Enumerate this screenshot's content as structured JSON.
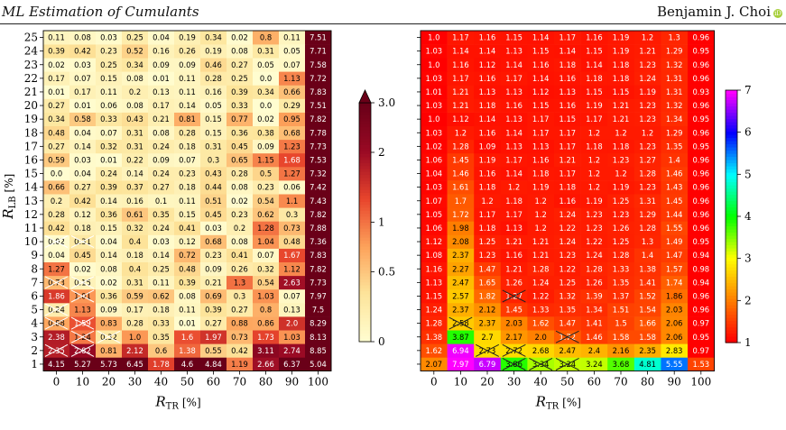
{
  "header": {
    "left_title": "ML Estimation of Cumulants",
    "right_author": "Benjamin J. Choi",
    "orcid_badge": "iD"
  },
  "chart_data": [
    {
      "type": "heatmap",
      "x_label_main": "R",
      "x_label_sub": "TR",
      "x_label_unit": "[%]",
      "y_label_main": "R",
      "y_label_sub": "LB",
      "y_label_unit": "[%]",
      "x_ticks": [
        "0",
        "10",
        "20",
        "30",
        "40",
        "50",
        "60",
        "70",
        "80",
        "90",
        "100"
      ],
      "y_ticks": [
        "1",
        "2",
        "3",
        "4",
        "5",
        "6",
        "7",
        "8",
        "9",
        "10",
        "11",
        "12",
        "13",
        "14",
        "15",
        "16",
        "17",
        "18",
        "19",
        "20",
        "21",
        "22",
        "23",
        "24",
        "25"
      ],
      "colorbar": {
        "scale": "log",
        "range": [
          0,
          3.0
        ],
        "ticks": [
          "0",
          "0.5",
          "1",
          "2",
          "3.0"
        ],
        "extend_max": true,
        "colors": [
          "#fffdd0",
          "#fde49a",
          "#fda15a",
          "#e8452c",
          "#9a0a24",
          "#6a0018"
        ]
      },
      "values": [
        [
          "4.15",
          "5.27",
          "5.73",
          "6.45",
          "1.78",
          "4.6",
          "4.84",
          "1.19",
          "2.66",
          "6.37",
          "5.04"
        ],
        [
          "2.35",
          "2.82",
          "0.81",
          "2.12",
          "0.6",
          "1.38",
          "0.55",
          "0.42",
          "3.11",
          "2.74",
          "8.85"
        ],
        [
          "2.38",
          "1.24",
          "0.32",
          "1.0",
          "0.35",
          "1.6",
          "1.97",
          "0.73",
          "1.73",
          "1.03",
          "8.13"
        ],
        [
          "0.88",
          "1.59",
          "0.83",
          "0.28",
          "0.33",
          "0.01",
          "0.27",
          "0.88",
          "0.86",
          "2.0",
          "8.29"
        ],
        [
          "0.24",
          "1.13",
          "0.09",
          "0.17",
          "0.18",
          "0.11",
          "0.39",
          "0.27",
          "0.8",
          "0.13",
          "7.5"
        ],
        [
          "1.86",
          "1.01",
          "0.36",
          "0.59",
          "0.62",
          "0.08",
          "0.69",
          "0.3",
          "1.03",
          "0.07",
          "7.97"
        ],
        [
          "0.73",
          "0.15",
          "0.02",
          "0.31",
          "0.11",
          "0.39",
          "0.21",
          "1.3",
          "0.54",
          "2.63",
          "7.73"
        ],
        [
          "1.27",
          "0.02",
          "0.08",
          "0.4",
          "0.25",
          "0.48",
          "0.09",
          "0.26",
          "0.32",
          "1.12",
          "7.82"
        ],
        [
          "0.04",
          "0.45",
          "0.14",
          "0.18",
          "0.14",
          "0.72",
          "0.23",
          "0.41",
          "0.07",
          "1.67",
          "7.83"
        ],
        [
          "0.02",
          "0.31",
          "0.04",
          "0.4",
          "0.03",
          "0.12",
          "0.68",
          "0.08",
          "1.04",
          "0.48",
          "7.36"
        ],
        [
          "0.42",
          "0.18",
          "0.15",
          "0.32",
          "0.24",
          "0.41",
          "0.03",
          "0.2",
          "1.28",
          "0.73",
          "7.88"
        ],
        [
          "0.28",
          "0.12",
          "0.36",
          "0.61",
          "0.35",
          "0.15",
          "0.45",
          "0.23",
          "0.62",
          "0.3",
          "7.82"
        ],
        [
          "0.2",
          "0.42",
          "0.14",
          "0.16",
          "0.1",
          "0.11",
          "0.51",
          "0.02",
          "0.54",
          "1.1",
          "7.43"
        ],
        [
          "0.66",
          "0.27",
          "0.39",
          "0.37",
          "0.27",
          "0.18",
          "0.44",
          "0.08",
          "0.23",
          "0.06",
          "7.42"
        ],
        [
          "0.0",
          "0.04",
          "0.24",
          "0.14",
          "0.24",
          "0.23",
          "0.43",
          "0.28",
          "0.5",
          "1.27",
          "7.32"
        ],
        [
          "0.59",
          "0.03",
          "0.01",
          "0.22",
          "0.09",
          "0.07",
          "0.3",
          "0.65",
          "1.15",
          "1.68",
          "7.53"
        ],
        [
          "0.27",
          "0.14",
          "0.32",
          "0.31",
          "0.24",
          "0.18",
          "0.31",
          "0.45",
          "0.09",
          "1.23",
          "7.73"
        ],
        [
          "0.48",
          "0.04",
          "0.07",
          "0.31",
          "0.08",
          "0.28",
          "0.15",
          "0.36",
          "0.38",
          "0.68",
          "7.78"
        ],
        [
          "0.34",
          "0.58",
          "0.33",
          "0.43",
          "0.21",
          "0.81",
          "0.15",
          "0.77",
          "0.02",
          "0.95",
          "7.82"
        ],
        [
          "0.27",
          "0.01",
          "0.06",
          "0.08",
          "0.17",
          "0.14",
          "0.05",
          "0.33",
          "0.0",
          "0.29",
          "7.51"
        ],
        [
          "0.01",
          "0.17",
          "0.11",
          "0.2",
          "0.13",
          "0.11",
          "0.16",
          "0.39",
          "0.34",
          "0.66",
          "7.83"
        ],
        [
          "0.17",
          "0.07",
          "0.15",
          "0.08",
          "0.01",
          "0.11",
          "0.28",
          "0.25",
          "0.0",
          "1.13",
          "7.72"
        ],
        [
          "0.02",
          "0.03",
          "0.25",
          "0.34",
          "0.09",
          "0.09",
          "0.46",
          "0.27",
          "0.05",
          "0.07",
          "7.58"
        ],
        [
          "0.39",
          "0.42",
          "0.23",
          "0.52",
          "0.16",
          "0.26",
          "0.19",
          "0.08",
          "0.31",
          "0.05",
          "7.71"
        ],
        [
          "0.11",
          "0.08",
          "0.03",
          "0.25",
          "0.04",
          "0.19",
          "0.34",
          "0.02",
          "0.8",
          "0.11",
          "7.51"
        ]
      ],
      "crossed_cells": [
        [
          1,
          0
        ],
        [
          1,
          1
        ],
        [
          2,
          1
        ],
        [
          2,
          2
        ],
        [
          3,
          0
        ],
        [
          3,
          1
        ],
        [
          4,
          0
        ],
        [
          5,
          1
        ],
        [
          6,
          0
        ],
        [
          6,
          1
        ],
        [
          9,
          0
        ],
        [
          9,
          1
        ]
      ]
    },
    {
      "type": "heatmap",
      "x_label_main": "R",
      "x_label_sub": "TR",
      "x_label_unit": "[%]",
      "x_ticks": [
        "0",
        "10",
        "20",
        "30",
        "40",
        "50",
        "60",
        "70",
        "80",
        "90",
        "100"
      ],
      "y_ticks": [
        "1",
        "2",
        "3",
        "4",
        "5",
        "6",
        "7",
        "8",
        "9",
        "10",
        "11",
        "12",
        "13",
        "14",
        "15",
        "16",
        "17",
        "18",
        "19",
        "20",
        "21",
        "22",
        "23",
        "24",
        "25"
      ],
      "colorbar": {
        "scale": "linear",
        "range": [
          1,
          7
        ],
        "ticks": [
          "1",
          "2",
          "3",
          "4",
          "5",
          "6",
          "7"
        ],
        "colors": [
          "#ff0000",
          "#ff8000",
          "#ffff00",
          "#00ff00",
          "#00ffff",
          "#0000ff",
          "#ff00ff"
        ]
      },
      "values": [
        [
          "2.07",
          "7.97",
          "6.79",
          "3.86",
          "3.34",
          "3.24",
          "3.24",
          "3.68",
          "4.81",
          "5.55",
          "1.53"
        ],
        [
          "1.62",
          "6.94",
          "2.73",
          "2.72",
          "2.68",
          "2.47",
          "2.4",
          "2.16",
          "2.35",
          "2.83",
          "0.97"
        ],
        [
          "1.38",
          "3.87",
          "2.7",
          "2.17",
          "2.0",
          "1.72",
          "1.46",
          "1.58",
          "1.58",
          "2.06",
          "0.95"
        ],
        [
          "1.28",
          "2.58",
          "2.37",
          "2.03",
          "1.62",
          "1.47",
          "1.41",
          "1.5",
          "1.66",
          "2.06",
          "0.97"
        ],
        [
          "1.24",
          "2.37",
          "2.12",
          "1.45",
          "1.33",
          "1.35",
          "1.34",
          "1.51",
          "1.54",
          "2.03",
          "0.96"
        ],
        [
          "1.15",
          "2.57",
          "1.82",
          "1.27",
          "1.22",
          "1.32",
          "1.39",
          "1.37",
          "1.52",
          "1.86",
          "0.96"
        ],
        [
          "1.13",
          "2.47",
          "1.65",
          "1.26",
          "1.24",
          "1.25",
          "1.26",
          "1.35",
          "1.41",
          "1.74",
          "0.94"
        ],
        [
          "1.16",
          "2.27",
          "1.47",
          "1.21",
          "1.28",
          "1.22",
          "1.28",
          "1.33",
          "1.38",
          "1.57",
          "0.98"
        ],
        [
          "1.08",
          "2.37",
          "1.23",
          "1.16",
          "1.21",
          "1.23",
          "1.24",
          "1.28",
          "1.4",
          "1.47",
          "0.94"
        ],
        [
          "1.12",
          "2.08",
          "1.25",
          "1.21",
          "1.21",
          "1.24",
          "1.22",
          "1.25",
          "1.3",
          "1.49",
          "0.95"
        ],
        [
          "1.06",
          "1.98",
          "1.18",
          "1.13",
          "1.2",
          "1.22",
          "1.23",
          "1.26",
          "1.28",
          "1.55",
          "0.96"
        ],
        [
          "1.05",
          "1.72",
          "1.17",
          "1.17",
          "1.2",
          "1.24",
          "1.23",
          "1.23",
          "1.29",
          "1.44",
          "0.96"
        ],
        [
          "1.07",
          "1.7",
          "1.2",
          "1.18",
          "1.2",
          "1.16",
          "1.19",
          "1.25",
          "1.31",
          "1.45",
          "0.96"
        ],
        [
          "1.03",
          "1.61",
          "1.18",
          "1.2",
          "1.19",
          "1.18",
          "1.2",
          "1.19",
          "1.23",
          "1.43",
          "0.96"
        ],
        [
          "1.04",
          "1.46",
          "1.16",
          "1.14",
          "1.18",
          "1.17",
          "1.2",
          "1.2",
          "1.28",
          "1.46",
          "0.96"
        ],
        [
          "1.06",
          "1.45",
          "1.19",
          "1.17",
          "1.16",
          "1.21",
          "1.2",
          "1.23",
          "1.27",
          "1.4",
          "0.96"
        ],
        [
          "1.02",
          "1.28",
          "1.09",
          "1.13",
          "1.13",
          "1.17",
          "1.18",
          "1.18",
          "1.23",
          "1.35",
          "0.95"
        ],
        [
          "1.03",
          "1.2",
          "1.16",
          "1.14",
          "1.17",
          "1.17",
          "1.2",
          "1.2",
          "1.2",
          "1.29",
          "0.96"
        ],
        [
          "1.0",
          "1.12",
          "1.14",
          "1.13",
          "1.17",
          "1.15",
          "1.17",
          "1.21",
          "1.23",
          "1.34",
          "0.95"
        ],
        [
          "1.03",
          "1.21",
          "1.18",
          "1.16",
          "1.15",
          "1.16",
          "1.19",
          "1.21",
          "1.23",
          "1.32",
          "0.96"
        ],
        [
          "1.01",
          "1.21",
          "1.13",
          "1.13",
          "1.12",
          "1.13",
          "1.15",
          "1.15",
          "1.19",
          "1.31",
          "0.93"
        ],
        [
          "1.03",
          "1.17",
          "1.16",
          "1.17",
          "1.14",
          "1.16",
          "1.18",
          "1.18",
          "1.24",
          "1.31",
          "0.96"
        ],
        [
          "1.0",
          "1.16",
          "1.12",
          "1.14",
          "1.16",
          "1.18",
          "1.14",
          "1.18",
          "1.23",
          "1.32",
          "0.96"
        ],
        [
          "1.03",
          "1.14",
          "1.14",
          "1.13",
          "1.15",
          "1.14",
          "1.15",
          "1.19",
          "1.21",
          "1.29",
          "0.95"
        ],
        [
          "1.0",
          "1.17",
          "1.16",
          "1.15",
          "1.14",
          "1.17",
          "1.16",
          "1.19",
          "1.2",
          "1.3",
          "0.96"
        ]
      ],
      "crossed_cells": [
        [
          0,
          3
        ],
        [
          0,
          4
        ],
        [
          0,
          5
        ],
        [
          1,
          2
        ],
        [
          1,
          3
        ],
        [
          2,
          5
        ],
        [
          3,
          1
        ],
        [
          5,
          3
        ]
      ]
    }
  ]
}
